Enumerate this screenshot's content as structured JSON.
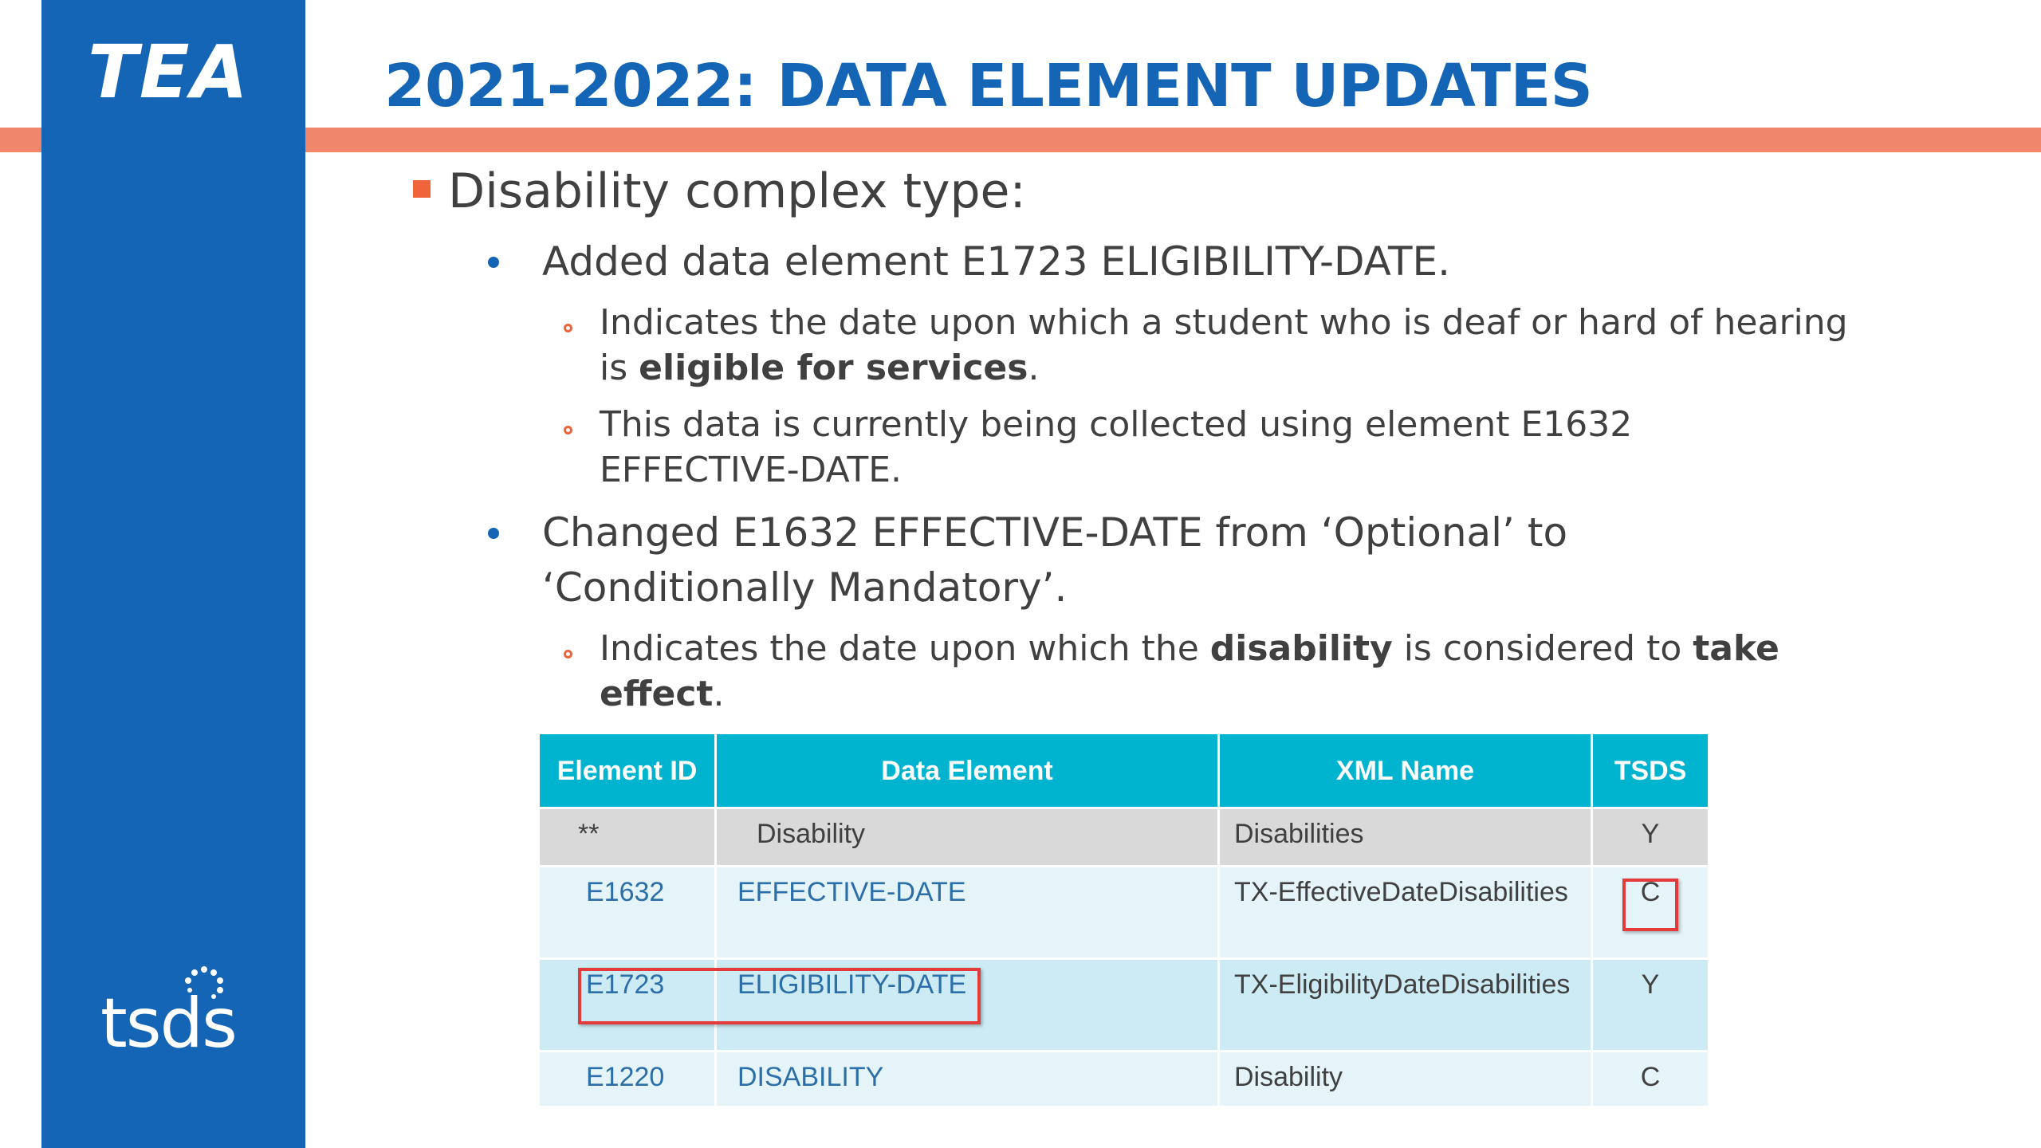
{
  "logos": {
    "top": "TEA",
    "bottom": "tsds"
  },
  "title": "2021-2022: DATA ELEMENT UPDATES",
  "bullet1": "Disability complex type:",
  "sub1": "Added data element E1723 ELIGIBILITY-DATE.",
  "sub1_points": [
    {
      "pre": "Indicates the date upon which a student who is deaf or hard of hearing is ",
      "bold": "eligible for services",
      "post": "."
    },
    {
      "text": "This data is currently being collected using element E1632 EFFECTIVE-DATE."
    }
  ],
  "sub2": "Changed E1632 EFFECTIVE-DATE from ‘Optional’ to ‘Conditionally Mandatory’.",
  "sub2_point": {
    "pre": "Indicates the date upon which the ",
    "bold1": "disability",
    "mid": " is considered to ",
    "bold2": "take effect",
    "post": "."
  },
  "table": {
    "headers": [
      "Element ID",
      "Data Element",
      "XML Name",
      "TSDS"
    ],
    "rows": [
      [
        "**",
        "Disability",
        "Disabilities",
        "Y"
      ],
      [
        "E1632",
        "EFFECTIVE-DATE",
        "TX-EffectiveDateDisabilities",
        "C"
      ],
      [
        "E1723",
        "ELIGIBILITY-DATE",
        "TX-EligibilityDateDisabilities",
        "Y"
      ],
      [
        "E1220",
        "DISABILITY",
        "Disability",
        "C"
      ]
    ]
  },
  "colors": {
    "brand_blue": "#1565b6",
    "accent_orange": "#f0866a",
    "table_header": "#00b4d0",
    "highlight_red": "#e53a3a"
  }
}
